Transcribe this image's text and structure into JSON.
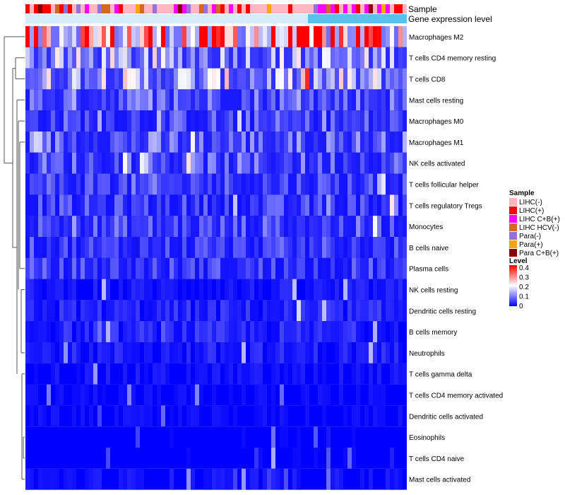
{
  "chart_data": {
    "type": "heatmap",
    "title": "",
    "annotation_tracks": [
      "Sample",
      "Gene expression level"
    ],
    "rows": [
      {
        "label": "Macrophages M2",
        "mean": 0.33
      },
      {
        "label": "T cells CD4 memory resting",
        "mean": 0.13
      },
      {
        "label": "T cells CD8",
        "mean": 0.14
      },
      {
        "label": "Mast cells resting",
        "mean": 0.08
      },
      {
        "label": "Macrophages M0",
        "mean": 0.06
      },
      {
        "label": "Macrophages M1",
        "mean": 0.08
      },
      {
        "label": "NK cells activated",
        "mean": 0.07
      },
      {
        "label": "T cells follicular helper",
        "mean": 0.06
      },
      {
        "label": "T cells regulatory  Tregs",
        "mean": 0.05
      },
      {
        "label": "Monocytes",
        "mean": 0.06
      },
      {
        "label": "B cells naive",
        "mean": 0.05
      },
      {
        "label": "Plasma cells",
        "mean": 0.05
      },
      {
        "label": "NK cells resting",
        "mean": 0.02
      },
      {
        "label": "Dendritic cells resting",
        "mean": 0.03
      },
      {
        "label": "B cells memory",
        "mean": 0.03
      },
      {
        "label": "Neutrophils",
        "mean": 0.025
      },
      {
        "label": "T cells gamma delta",
        "mean": 0.015
      },
      {
        "label": "T cells CD4 memory activated",
        "mean": 0.01
      },
      {
        "label": "Dendritic cells activated",
        "mean": 0.01
      },
      {
        "label": "Eosinophils",
        "mean": 0.005
      },
      {
        "label": "T cells CD4 naive",
        "mean": 0.005
      },
      {
        "label": "Mast cells activated",
        "mean": 0.015
      }
    ],
    "sample_legend": {
      "title": "Sample",
      "items": [
        {
          "label": "LIHC(-)",
          "color": "#ffb6c1"
        },
        {
          "label": "LIHC(+)",
          "color": "#ff0000"
        },
        {
          "label": "LIHC C+B(+)",
          "color": "#ff00ff"
        },
        {
          "label": "LIHC HCV(-)",
          "color": "#d2691e"
        },
        {
          "label": "Para(-)",
          "color": "#9370db"
        },
        {
          "label": "Para(+)",
          "color": "#ffa500"
        },
        {
          "label": "Para C+B(+)",
          "color": "#8b0000"
        }
      ]
    },
    "level_legend": {
      "title": "Level",
      "ticks": [
        "0.4",
        "0.3",
        "0.2",
        "0.1",
        "0"
      ],
      "range": [
        0,
        0.4
      ],
      "colors": {
        "low": "#0000ff",
        "mid": "#ffffff",
        "high": "#ff0000"
      }
    },
    "gene_expression_color": "#5bc0eb",
    "gene_expression_low_color": "#d6ecfa"
  }
}
